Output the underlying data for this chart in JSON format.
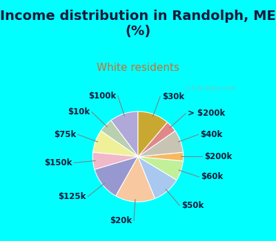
{
  "title": "Income distribution in Randolph, ME\n(%)",
  "subtitle": "White residents",
  "bg_cyan": "#00FFFF",
  "bg_chart": "#c8e8d8",
  "watermark": "ⓘ City-Data.com",
  "labels": [
    "$100k",
    "$10k",
    "$75k",
    "$150k",
    "$125k",
    "$20k",
    "$50k",
    "$60k",
    "$200k",
    "$40k",
    "> $200k",
    "$30k"
  ],
  "sizes": [
    10,
    5,
    8,
    6,
    12,
    14,
    10,
    7,
    3,
    8,
    4,
    11
  ],
  "colors": [
    "#b0a8d8",
    "#b8d0b0",
    "#f0f098",
    "#f0b8c8",
    "#9898d0",
    "#f8c8a0",
    "#a8c8f0",
    "#c0f098",
    "#f8b860",
    "#c8c4b4",
    "#e08888",
    "#c8a830"
  ],
  "startangle": 90,
  "title_fontsize": 14,
  "subtitle_fontsize": 11,
  "label_fontsize": 8.5
}
